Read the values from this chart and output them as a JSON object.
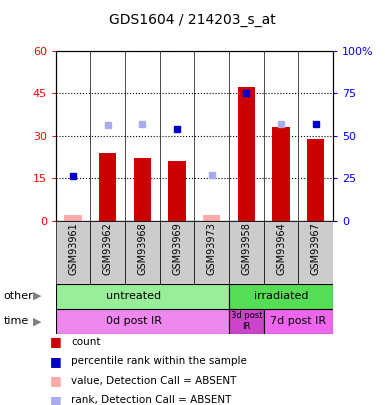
{
  "title": "GDS1604 / 214203_s_at",
  "samples": [
    "GSM93961",
    "GSM93962",
    "GSM93968",
    "GSM93969",
    "GSM93973",
    "GSM93958",
    "GSM93964",
    "GSM93967"
  ],
  "count_values": [
    2,
    24,
    22,
    21,
    2,
    47,
    33,
    29
  ],
  "count_absent": [
    true,
    false,
    false,
    false,
    true,
    false,
    false,
    false
  ],
  "rank_values": [
    26,
    56,
    57,
    54,
    27,
    75,
    57,
    57
  ],
  "rank_absent": [
    false,
    true,
    true,
    false,
    true,
    false,
    true,
    false
  ],
  "ylim_left": [
    0,
    60
  ],
  "ylim_right": [
    0,
    100
  ],
  "yticks_left": [
    0,
    15,
    30,
    45,
    60
  ],
  "yticks_right": [
    0,
    25,
    50,
    75,
    100
  ],
  "ytick_labels_left": [
    "0",
    "15",
    "30",
    "45",
    "60"
  ],
  "ytick_labels_right": [
    "0",
    "25",
    "50",
    "75",
    "100%"
  ],
  "bar_color_present": "#cc0000",
  "bar_color_absent": "#ffaaaa",
  "rank_color_present": "#0000cc",
  "rank_color_absent": "#aaaaee",
  "other_label": "other",
  "time_label": "time",
  "untreated_color": "#99ee99",
  "irradiated_color": "#55dd55",
  "time0d_color": "#ee88ee",
  "time3d_color": "#cc44cc",
  "time7d_color": "#ee66ee",
  "legend_items": [
    {
      "label": "count",
      "color": "#cc0000"
    },
    {
      "label": "percentile rank within the sample",
      "color": "#0000cc"
    },
    {
      "label": "value, Detection Call = ABSENT",
      "color": "#ffaaaa"
    },
    {
      "label": "rank, Detection Call = ABSENT",
      "color": "#aaaaee"
    }
  ],
  "background_color": "#ffffff"
}
